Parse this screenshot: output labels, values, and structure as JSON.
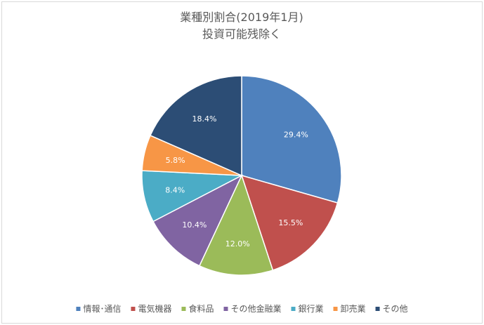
{
  "chart_data": {
    "type": "pie",
    "title": "業種別割合(2019年1月)",
    "subtitle": "投資可能残除く",
    "categories": [
      "情報･通信",
      "電気機器",
      "食料品",
      "その他金融業",
      "銀行業",
      "卸売業",
      "その他"
    ],
    "values": [
      29.4,
      15.5,
      12.0,
      10.4,
      8.4,
      5.8,
      18.4
    ],
    "labels": [
      "29.4%",
      "15.5%",
      "12.0%",
      "10.4%",
      "8.4%",
      "5.8%",
      "18.4%"
    ],
    "colors": [
      "#4f81bd",
      "#c0504d",
      "#9bbb59",
      "#8064a2",
      "#4bacc6",
      "#f79646",
      "#2c4d75"
    ],
    "legend_position": "bottom",
    "start_angle": "12 o'clock",
    "direction": "clockwise"
  }
}
